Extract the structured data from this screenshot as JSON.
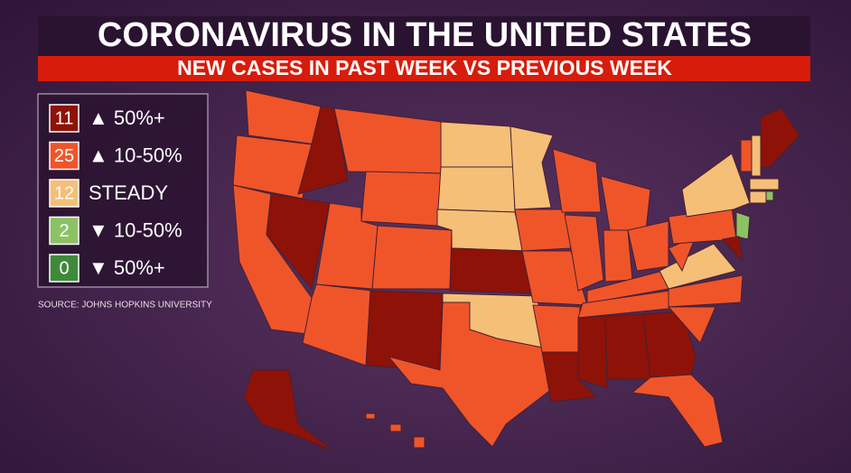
{
  "header": {
    "title": "CORONAVIRUS IN THE UNITED STATES",
    "subtitle": "NEW CASES IN PAST WEEK VS PREVIOUS WEEK"
  },
  "legend": [
    {
      "count": 11,
      "label": "▲ 50%+",
      "color": "#8e1208"
    },
    {
      "count": 25,
      "label": "▲ 10-50%",
      "color": "#f0552a"
    },
    {
      "count": 12,
      "label": "STEADY",
      "color": "#f5bf78"
    },
    {
      "count": 2,
      "label": "▼ 10-50%",
      "color": "#8cc265"
    },
    {
      "count": 0,
      "label": "▼ 50%+",
      "color": "#3f8a3a"
    }
  ],
  "source": "SOURCE: JOHNS HOPKINS UNIVERSITY"
}
